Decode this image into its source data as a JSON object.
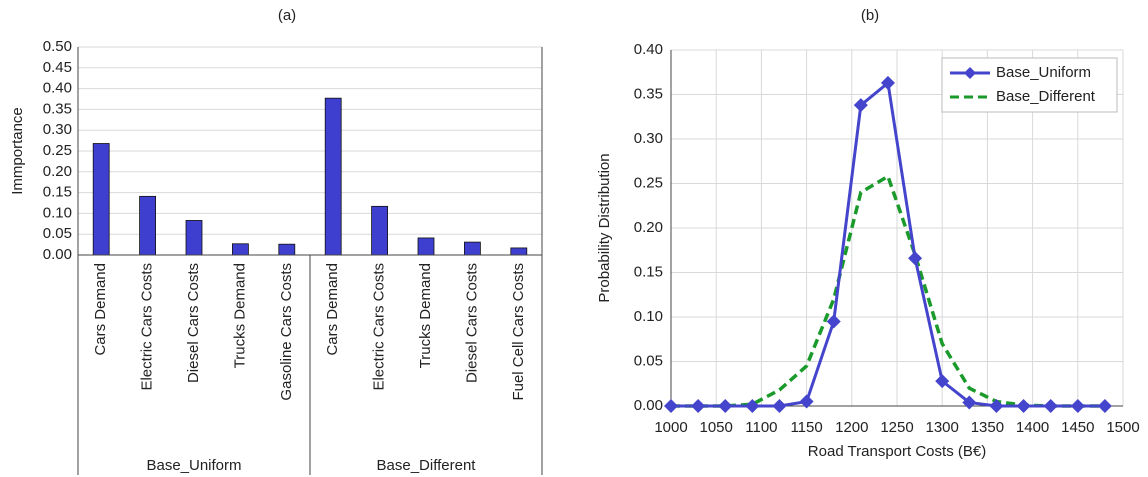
{
  "chart_data": [
    {
      "type": "bar",
      "title": "(a)",
      "y_label": "Immportance",
      "color": "#3f3fcf",
      "groups": [
        {
          "name": "Base_Uniform",
          "categories": [
            "Cars Demand",
            "Electric Cars Costs",
            "Diesel Cars Costs",
            "Trucks Demand",
            "Gasoline Cars Costs"
          ],
          "values": [
            0.268,
            0.141,
            0.083,
            0.027,
            0.026
          ]
        },
        {
          "name": "Base_Different",
          "categories": [
            "Cars Demand",
            "Electric Cars Costs",
            "Trucks Demand",
            "Diesel Cars Costs",
            "Fuel Cell Cars Costs"
          ],
          "values": [
            0.377,
            0.117,
            0.041,
            0.031,
            0.017
          ]
        }
      ],
      "ylim": [
        0,
        0.5
      ],
      "yticks": [
        {
          "value": 0,
          "label": "0.00"
        },
        {
          "value": 0.05,
          "label": "0.05"
        },
        {
          "value": 0.1,
          "label": "0.10"
        },
        {
          "value": 0.15,
          "label": "0.15"
        },
        {
          "value": 0.2,
          "label": "0.20"
        },
        {
          "value": 0.25,
          "label": "0.25"
        },
        {
          "value": 0.3,
          "label": "0.30"
        },
        {
          "value": 0.35,
          "label": "0.35"
        },
        {
          "value": 0.4,
          "label": "0.40"
        },
        {
          "value": 0.45,
          "label": "0.45"
        },
        {
          "value": 0.5,
          "label": "0.50"
        }
      ],
      "grid": true
    },
    {
      "type": "line",
      "title": "(b)",
      "x_label": "Road Transport Costs (B€)",
      "y_label": "Probability Distribution",
      "x": [
        1000,
        1030,
        1060,
        1090,
        1120,
        1150,
        1180,
        1210,
        1240,
        1270,
        1300,
        1330,
        1360,
        1390,
        1420,
        1450,
        1480
      ],
      "series": [
        {
          "name": "Base_Uniform",
          "color": "#4444cc",
          "style": "solid",
          "marker": "diamond",
          "values": [
            0,
            0,
            0,
            0,
            0,
            0.005,
            0.095,
            0.338,
            0.363,
            0.166,
            0.028,
            0.004,
            0,
            0,
            0,
            0,
            0
          ]
        },
        {
          "name": "Base_Different",
          "color": "#1a9a2a",
          "style": "dashed",
          "marker": "none",
          "values": [
            0,
            0,
            0,
            0.002,
            0.018,
            0.045,
            0.12,
            0.24,
            0.258,
            0.17,
            0.07,
            0.02,
            0.005,
            0.001,
            0,
            0,
            0
          ]
        }
      ],
      "xlim": [
        1000,
        1500
      ],
      "xticks": [
        1000,
        1050,
        1100,
        1150,
        1200,
        1250,
        1300,
        1350,
        1400,
        1450,
        1500
      ],
      "ylim": [
        0,
        0.4
      ],
      "yticks": [
        {
          "value": 0,
          "label": "0.00"
        },
        {
          "value": 0.05,
          "label": "0.05"
        },
        {
          "value": 0.1,
          "label": "0.10"
        },
        {
          "value": 0.15,
          "label": "0.15"
        },
        {
          "value": 0.2,
          "label": "0.20"
        },
        {
          "value": 0.25,
          "label": "0.25"
        },
        {
          "value": 0.3,
          "label": "0.30"
        },
        {
          "value": 0.35,
          "label": "0.35"
        },
        {
          "value": 0.4,
          "label": "0.40"
        }
      ],
      "grid": true,
      "legend": "top-right"
    }
  ]
}
